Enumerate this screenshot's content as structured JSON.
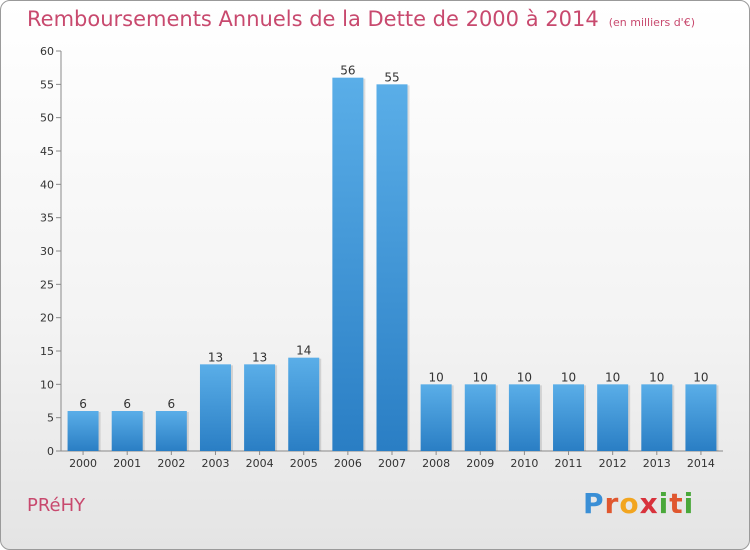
{
  "title": "Remboursements Annuels de la Dette de 2000 à 2014",
  "unit": "(en milliers d'€)",
  "commune": "PRéHY",
  "logo": {
    "letters": [
      "P",
      "r",
      "o",
      "x",
      "i",
      "t",
      "i"
    ],
    "colors": [
      "#3a8fd6",
      "#e0572f",
      "#f2a51f",
      "#d8323c",
      "#4aa83a",
      "#e0572f",
      "#4aa83a"
    ]
  },
  "colors": {
    "bar_light": "#5aaee8",
    "bar_dark": "#2a7ec4",
    "title": "#c8496e"
  },
  "chart_data": {
    "type": "bar",
    "categories": [
      "2000",
      "2001",
      "2002",
      "2003",
      "2004",
      "2005",
      "2006",
      "2007",
      "2008",
      "2009",
      "2010",
      "2011",
      "2012",
      "2013",
      "2014"
    ],
    "values": [
      6,
      6,
      6,
      13,
      13,
      14,
      56,
      55,
      10,
      10,
      10,
      10,
      10,
      10,
      10
    ],
    "ylim": [
      0,
      60
    ],
    "yticks": [
      0,
      5,
      10,
      15,
      20,
      25,
      30,
      35,
      40,
      45,
      50,
      55,
      60
    ],
    "grid": false
  }
}
